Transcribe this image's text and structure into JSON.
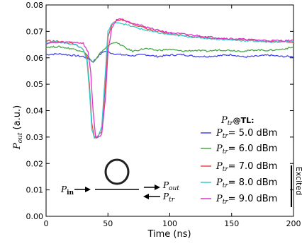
{
  "chart_data": {
    "type": "line",
    "xlabel": "Time (ns)",
    "ylabel": "P_out (a.u.)",
    "xlim": [
      0,
      200
    ],
    "ylim": [
      0.0,
      0.08
    ],
    "x_ticks": [
      "0",
      "50",
      "100",
      "150",
      "200"
    ],
    "y_ticks": [
      "0.00",
      "0.01",
      "0.02",
      "0.03",
      "0.04",
      "0.05",
      "0.06",
      "0.07",
      "0.08"
    ],
    "grid": false,
    "legend_title": "P_tr@TL:",
    "legend_side_label": "Excited",
    "legend_placement": "bottom-right",
    "series": [
      {
        "name": "P_tr = 5.0 dBm",
        "color": "#4444ee",
        "points": [
          [
            0,
            0.0612
          ],
          [
            10,
            0.0615
          ],
          [
            20,
            0.061
          ],
          [
            30,
            0.0605
          ],
          [
            35,
            0.0595
          ],
          [
            38,
            0.0585
          ],
          [
            40,
            0.0595
          ],
          [
            43,
            0.061
          ],
          [
            47,
            0.0625
          ],
          [
            50,
            0.0622
          ],
          [
            55,
            0.0615
          ],
          [
            60,
            0.0612
          ],
          [
            70,
            0.0608
          ],
          [
            80,
            0.0612
          ],
          [
            90,
            0.0605
          ],
          [
            100,
            0.061
          ],
          [
            110,
            0.0612
          ],
          [
            120,
            0.0606
          ],
          [
            130,
            0.0605
          ],
          [
            140,
            0.0608
          ],
          [
            150,
            0.0612
          ],
          [
            160,
            0.0603
          ],
          [
            170,
            0.0606
          ],
          [
            180,
            0.061
          ],
          [
            190,
            0.0605
          ],
          [
            200,
            0.0605
          ]
        ]
      },
      {
        "name": "P_tr = 6.0 dBm",
        "color": "#44aa44",
        "points": [
          [
            0,
            0.064
          ],
          [
            10,
            0.0642
          ],
          [
            20,
            0.0635
          ],
          [
            30,
            0.0625
          ],
          [
            34,
            0.0605
          ],
          [
            37,
            0.0585
          ],
          [
            39,
            0.0585
          ],
          [
            42,
            0.0605
          ],
          [
            45,
            0.0625
          ],
          [
            50,
            0.0645
          ],
          [
            55,
            0.066
          ],
          [
            60,
            0.065
          ],
          [
            65,
            0.0635
          ],
          [
            70,
            0.0625
          ],
          [
            80,
            0.0635
          ],
          [
            90,
            0.0628
          ],
          [
            100,
            0.0632
          ],
          [
            110,
            0.0625
          ],
          [
            120,
            0.0628
          ],
          [
            130,
            0.0625
          ],
          [
            140,
            0.063
          ],
          [
            150,
            0.0628
          ],
          [
            160,
            0.0625
          ],
          [
            170,
            0.063
          ],
          [
            180,
            0.0628
          ],
          [
            190,
            0.0632
          ],
          [
            200,
            0.064
          ]
        ]
      },
      {
        "name": "P_tr = 7.0 dBm",
        "color": "#ee4444",
        "points": [
          [
            0,
            0.0665
          ],
          [
            10,
            0.0662
          ],
          [
            20,
            0.0655
          ],
          [
            25,
            0.0648
          ],
          [
            30,
            0.063
          ],
          [
            33,
            0.06
          ],
          [
            35,
            0.05
          ],
          [
            37,
            0.035
          ],
          [
            39,
            0.03
          ],
          [
            42,
            0.0305
          ],
          [
            45,
            0.032
          ],
          [
            48,
            0.05
          ],
          [
            50,
            0.068
          ],
          [
            53,
            0.0725
          ],
          [
            57,
            0.074
          ],
          [
            60,
            0.0745
          ],
          [
            65,
            0.0738
          ],
          [
            70,
            0.0728
          ],
          [
            80,
            0.0712
          ],
          [
            90,
            0.07
          ],
          [
            100,
            0.069
          ],
          [
            120,
            0.068
          ],
          [
            140,
            0.0672
          ],
          [
            160,
            0.0668
          ],
          [
            180,
            0.0662
          ],
          [
            200,
            0.066
          ]
        ]
      },
      {
        "name": "P_tr = 8.0 dBm",
        "color": "#33cccc",
        "points": [
          [
            0,
            0.0658
          ],
          [
            10,
            0.066
          ],
          [
            20,
            0.0652
          ],
          [
            25,
            0.0648
          ],
          [
            30,
            0.0632
          ],
          [
            33,
            0.059
          ],
          [
            35,
            0.048
          ],
          [
            37,
            0.033
          ],
          [
            39,
            0.0295
          ],
          [
            42,
            0.03
          ],
          [
            45,
            0.034
          ],
          [
            48,
            0.055
          ],
          [
            50,
            0.07
          ],
          [
            53,
            0.0728
          ],
          [
            57,
            0.0735
          ],
          [
            60,
            0.0732
          ],
          [
            65,
            0.0725
          ],
          [
            70,
            0.0718
          ],
          [
            80,
            0.0705
          ],
          [
            90,
            0.0695
          ],
          [
            100,
            0.0688
          ],
          [
            120,
            0.0678
          ],
          [
            140,
            0.067
          ],
          [
            160,
            0.0665
          ],
          [
            180,
            0.066
          ],
          [
            200,
            0.0662
          ]
        ]
      },
      {
        "name": "P_tr = 9.0 dBm",
        "color": "#dd33cc",
        "points": [
          [
            0,
            0.0655
          ],
          [
            10,
            0.0658
          ],
          [
            20,
            0.066
          ],
          [
            25,
            0.0658
          ],
          [
            30,
            0.0655
          ],
          [
            34,
            0.062
          ],
          [
            36,
            0.055
          ],
          [
            38,
            0.04
          ],
          [
            40,
            0.03
          ],
          [
            42,
            0.0298
          ],
          [
            45,
            0.031
          ],
          [
            48,
            0.045
          ],
          [
            50,
            0.062
          ],
          [
            53,
            0.071
          ],
          [
            57,
            0.0745
          ],
          [
            60,
            0.0748
          ],
          [
            65,
            0.074
          ],
          [
            70,
            0.0732
          ],
          [
            80,
            0.0718
          ],
          [
            90,
            0.0705
          ],
          [
            100,
            0.0695
          ],
          [
            120,
            0.0685
          ],
          [
            140,
            0.0675
          ],
          [
            160,
            0.067
          ],
          [
            180,
            0.0665
          ],
          [
            200,
            0.0665
          ]
        ]
      }
    ],
    "inset": {
      "label_in": "P_in",
      "label_out": "P_out",
      "label_tr": "P_tr"
    }
  }
}
